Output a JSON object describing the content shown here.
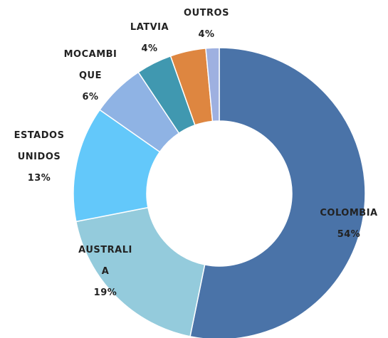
{
  "chart_data": {
    "type": "donut",
    "categories": [
      "COLOMBIA",
      "AUSTRALI\nA",
      "ESTADOS\nUNIDOS",
      "MOCAMBI\nQUE",
      "LATVIA",
      "OUTROS",
      null
    ],
    "values": [
      54,
      19,
      13,
      6,
      4,
      4,
      1.5
    ],
    "value_labels": [
      "54%",
      "19%",
      "13%",
      "6%",
      "4%",
      "4%",
      null
    ],
    "colors": [
      "#4a73a8",
      "#94cbdc",
      "#63c8fa",
      "#8fb3e4",
      "#4098b0",
      "#de8640",
      "#9eb0e0"
    ]
  }
}
